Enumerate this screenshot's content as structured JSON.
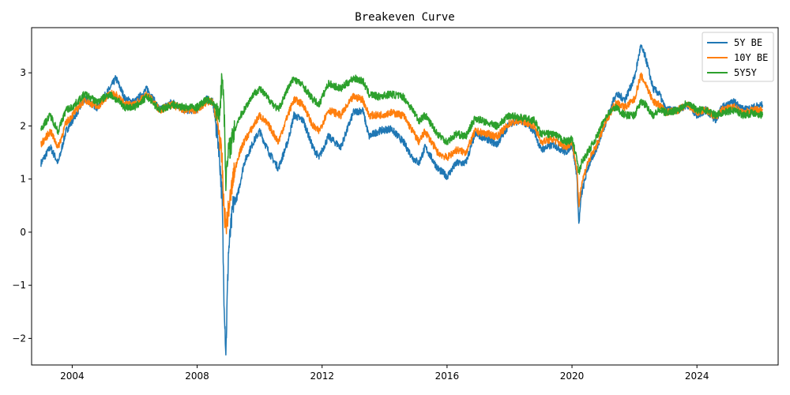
{
  "chart_data": {
    "type": "line",
    "title": "Breakeven Curve",
    "xlabel": "",
    "ylabel": "",
    "xlim": [
      2002.7,
      2026.6
    ],
    "ylim": [
      -2.5,
      3.85
    ],
    "x_ticks": [
      2004,
      2008,
      2012,
      2016,
      2020,
      2024
    ],
    "x_tick_labels": [
      "2004",
      "2008",
      "2012",
      "2016",
      "2020",
      "2024"
    ],
    "y_ticks": [
      -2,
      -1,
      0,
      1,
      2,
      3
    ],
    "y_tick_labels": [
      "−2",
      "−1",
      "0",
      "1",
      "2",
      "3"
    ],
    "grid": false,
    "legend_position": "top-right",
    "series": [
      {
        "name": "5Y BE",
        "color": "#1f77b4",
        "points": [
          [
            2003.0,
            1.3
          ],
          [
            2003.3,
            1.6
          ],
          [
            2003.55,
            1.3
          ],
          [
            2003.8,
            1.9
          ],
          [
            2004.0,
            2.1
          ],
          [
            2004.4,
            2.5
          ],
          [
            2004.8,
            2.35
          ],
          [
            2005.2,
            2.7
          ],
          [
            2005.4,
            2.9
          ],
          [
            2005.7,
            2.5
          ],
          [
            2006.0,
            2.45
          ],
          [
            2006.4,
            2.7
          ],
          [
            2006.8,
            2.3
          ],
          [
            2007.2,
            2.45
          ],
          [
            2007.6,
            2.3
          ],
          [
            2008.0,
            2.3
          ],
          [
            2008.3,
            2.5
          ],
          [
            2008.5,
            2.45
          ],
          [
            2008.7,
            1.6
          ],
          [
            2008.8,
            0.6
          ],
          [
            2008.85,
            -1.0
          ],
          [
            2008.92,
            -2.25
          ],
          [
            2009.0,
            -0.4
          ],
          [
            2009.15,
            0.5
          ],
          [
            2009.3,
            0.7
          ],
          [
            2009.5,
            1.3
          ],
          [
            2009.8,
            1.7
          ],
          [
            2010.0,
            1.9
          ],
          [
            2010.3,
            1.5
          ],
          [
            2010.6,
            1.2
          ],
          [
            2010.9,
            1.7
          ],
          [
            2011.1,
            2.2
          ],
          [
            2011.4,
            2.1
          ],
          [
            2011.7,
            1.6
          ],
          [
            2011.9,
            1.4
          ],
          [
            2012.2,
            1.8
          ],
          [
            2012.6,
            1.6
          ],
          [
            2013.0,
            2.25
          ],
          [
            2013.3,
            2.3
          ],
          [
            2013.5,
            1.8
          ],
          [
            2013.8,
            1.9
          ],
          [
            2014.2,
            1.95
          ],
          [
            2014.6,
            1.7
          ],
          [
            2014.9,
            1.4
          ],
          [
            2015.1,
            1.3
          ],
          [
            2015.3,
            1.6
          ],
          [
            2015.7,
            1.2
          ],
          [
            2016.0,
            1.05
          ],
          [
            2016.3,
            1.3
          ],
          [
            2016.6,
            1.3
          ],
          [
            2016.9,
            1.85
          ],
          [
            2017.3,
            1.75
          ],
          [
            2017.6,
            1.65
          ],
          [
            2018.0,
            2.05
          ],
          [
            2018.4,
            2.1
          ],
          [
            2018.8,
            1.9
          ],
          [
            2019.0,
            1.55
          ],
          [
            2019.4,
            1.65
          ],
          [
            2019.8,
            1.5
          ],
          [
            2020.0,
            1.65
          ],
          [
            2020.15,
            1.1
          ],
          [
            2020.22,
            0.15
          ],
          [
            2020.3,
            0.7
          ],
          [
            2020.5,
            1.2
          ],
          [
            2020.8,
            1.6
          ],
          [
            2021.1,
            2.1
          ],
          [
            2021.4,
            2.6
          ],
          [
            2021.7,
            2.5
          ],
          [
            2022.0,
            2.9
          ],
          [
            2022.2,
            3.5
          ],
          [
            2022.35,
            3.3
          ],
          [
            2022.6,
            2.7
          ],
          [
            2022.8,
            2.6
          ],
          [
            2023.0,
            2.3
          ],
          [
            2023.4,
            2.3
          ],
          [
            2023.7,
            2.4
          ],
          [
            2024.0,
            2.2
          ],
          [
            2024.3,
            2.3
          ],
          [
            2024.6,
            2.1
          ],
          [
            2024.8,
            2.35
          ],
          [
            2025.2,
            2.45
          ],
          [
            2025.5,
            2.3
          ],
          [
            2025.8,
            2.35
          ],
          [
            2026.1,
            2.4
          ]
        ]
      },
      {
        "name": "10Y BE",
        "color": "#ff7f0e",
        "points": [
          [
            2003.0,
            1.65
          ],
          [
            2003.3,
            1.9
          ],
          [
            2003.55,
            1.6
          ],
          [
            2003.8,
            2.05
          ],
          [
            2004.0,
            2.2
          ],
          [
            2004.4,
            2.5
          ],
          [
            2004.8,
            2.35
          ],
          [
            2005.2,
            2.6
          ],
          [
            2005.4,
            2.6
          ],
          [
            2005.7,
            2.4
          ],
          [
            2006.0,
            2.4
          ],
          [
            2006.4,
            2.6
          ],
          [
            2006.8,
            2.3
          ],
          [
            2007.2,
            2.4
          ],
          [
            2007.6,
            2.3
          ],
          [
            2008.0,
            2.3
          ],
          [
            2008.3,
            2.45
          ],
          [
            2008.5,
            2.45
          ],
          [
            2008.7,
            1.9
          ],
          [
            2008.8,
            1.3
          ],
          [
            2008.85,
            0.5
          ],
          [
            2008.92,
            0.1
          ],
          [
            2009.0,
            0.4
          ],
          [
            2009.15,
            1.0
          ],
          [
            2009.3,
            1.4
          ],
          [
            2009.5,
            1.7
          ],
          [
            2009.8,
            2.0
          ],
          [
            2010.0,
            2.2
          ],
          [
            2010.3,
            2.0
          ],
          [
            2010.6,
            1.7
          ],
          [
            2010.9,
            2.2
          ],
          [
            2011.1,
            2.5
          ],
          [
            2011.4,
            2.4
          ],
          [
            2011.7,
            2.0
          ],
          [
            2011.9,
            1.9
          ],
          [
            2012.2,
            2.3
          ],
          [
            2012.6,
            2.2
          ],
          [
            2013.0,
            2.55
          ],
          [
            2013.3,
            2.5
          ],
          [
            2013.5,
            2.2
          ],
          [
            2013.8,
            2.2
          ],
          [
            2014.2,
            2.25
          ],
          [
            2014.6,
            2.2
          ],
          [
            2014.9,
            1.9
          ],
          [
            2015.1,
            1.7
          ],
          [
            2015.3,
            1.9
          ],
          [
            2015.7,
            1.5
          ],
          [
            2016.0,
            1.4
          ],
          [
            2016.3,
            1.55
          ],
          [
            2016.6,
            1.5
          ],
          [
            2016.9,
            1.9
          ],
          [
            2017.3,
            1.85
          ],
          [
            2017.6,
            1.8
          ],
          [
            2018.0,
            2.05
          ],
          [
            2018.4,
            2.1
          ],
          [
            2018.8,
            2.0
          ],
          [
            2019.0,
            1.7
          ],
          [
            2019.4,
            1.75
          ],
          [
            2019.8,
            1.6
          ],
          [
            2020.0,
            1.7
          ],
          [
            2020.15,
            1.2
          ],
          [
            2020.22,
            0.5
          ],
          [
            2020.3,
            0.9
          ],
          [
            2020.5,
            1.3
          ],
          [
            2020.8,
            1.65
          ],
          [
            2021.1,
            2.1
          ],
          [
            2021.4,
            2.45
          ],
          [
            2021.7,
            2.35
          ],
          [
            2022.0,
            2.5
          ],
          [
            2022.2,
            2.95
          ],
          [
            2022.35,
            2.8
          ],
          [
            2022.6,
            2.45
          ],
          [
            2022.8,
            2.4
          ],
          [
            2023.0,
            2.25
          ],
          [
            2023.4,
            2.3
          ],
          [
            2023.7,
            2.4
          ],
          [
            2024.0,
            2.25
          ],
          [
            2024.3,
            2.3
          ],
          [
            2024.6,
            2.15
          ],
          [
            2024.8,
            2.3
          ],
          [
            2025.2,
            2.35
          ],
          [
            2025.5,
            2.25
          ],
          [
            2025.8,
            2.3
          ],
          [
            2026.1,
            2.3
          ]
        ]
      },
      {
        "name": "5Y5Y",
        "color": "#2ca02c",
        "points": [
          [
            2003.0,
            1.95
          ],
          [
            2003.3,
            2.2
          ],
          [
            2003.55,
            1.9
          ],
          [
            2003.8,
            2.3
          ],
          [
            2004.0,
            2.35
          ],
          [
            2004.4,
            2.6
          ],
          [
            2004.8,
            2.45
          ],
          [
            2005.2,
            2.6
          ],
          [
            2005.4,
            2.5
          ],
          [
            2005.7,
            2.35
          ],
          [
            2006.0,
            2.35
          ],
          [
            2006.4,
            2.55
          ],
          [
            2006.8,
            2.3
          ],
          [
            2007.2,
            2.4
          ],
          [
            2007.6,
            2.35
          ],
          [
            2008.0,
            2.35
          ],
          [
            2008.3,
            2.5
          ],
          [
            2008.5,
            2.45
          ],
          [
            2008.7,
            2.2
          ],
          [
            2008.8,
            2.9
          ],
          [
            2008.85,
            2.6
          ],
          [
            2008.92,
            1.0
          ],
          [
            2009.0,
            1.5
          ],
          [
            2009.15,
            1.8
          ],
          [
            2009.3,
            2.1
          ],
          [
            2009.5,
            2.3
          ],
          [
            2009.8,
            2.6
          ],
          [
            2010.0,
            2.7
          ],
          [
            2010.3,
            2.5
          ],
          [
            2010.6,
            2.3
          ],
          [
            2010.9,
            2.7
          ],
          [
            2011.1,
            2.9
          ],
          [
            2011.4,
            2.75
          ],
          [
            2011.7,
            2.5
          ],
          [
            2011.9,
            2.4
          ],
          [
            2012.2,
            2.8
          ],
          [
            2012.6,
            2.7
          ],
          [
            2013.0,
            2.9
          ],
          [
            2013.3,
            2.85
          ],
          [
            2013.5,
            2.6
          ],
          [
            2013.8,
            2.55
          ],
          [
            2014.2,
            2.6
          ],
          [
            2014.6,
            2.55
          ],
          [
            2014.9,
            2.3
          ],
          [
            2015.1,
            2.1
          ],
          [
            2015.3,
            2.2
          ],
          [
            2015.7,
            1.85
          ],
          [
            2016.0,
            1.7
          ],
          [
            2016.3,
            1.85
          ],
          [
            2016.6,
            1.8
          ],
          [
            2016.9,
            2.15
          ],
          [
            2017.3,
            2.05
          ],
          [
            2017.6,
            2.0
          ],
          [
            2018.0,
            2.2
          ],
          [
            2018.4,
            2.15
          ],
          [
            2018.8,
            2.1
          ],
          [
            2019.0,
            1.85
          ],
          [
            2019.4,
            1.85
          ],
          [
            2019.8,
            1.7
          ],
          [
            2020.0,
            1.75
          ],
          [
            2020.15,
            1.4
          ],
          [
            2020.22,
            1.1
          ],
          [
            2020.3,
            1.3
          ],
          [
            2020.5,
            1.5
          ],
          [
            2020.8,
            1.8
          ],
          [
            2021.1,
            2.2
          ],
          [
            2021.4,
            2.35
          ],
          [
            2021.7,
            2.2
          ],
          [
            2022.0,
            2.2
          ],
          [
            2022.2,
            2.45
          ],
          [
            2022.35,
            2.4
          ],
          [
            2022.6,
            2.2
          ],
          [
            2022.8,
            2.3
          ],
          [
            2023.0,
            2.25
          ],
          [
            2023.4,
            2.3
          ],
          [
            2023.7,
            2.45
          ],
          [
            2024.0,
            2.3
          ],
          [
            2024.3,
            2.3
          ],
          [
            2024.6,
            2.2
          ],
          [
            2024.8,
            2.25
          ],
          [
            2025.2,
            2.3
          ],
          [
            2025.5,
            2.2
          ],
          [
            2025.8,
            2.25
          ],
          [
            2026.1,
            2.2
          ]
        ]
      }
    ]
  }
}
